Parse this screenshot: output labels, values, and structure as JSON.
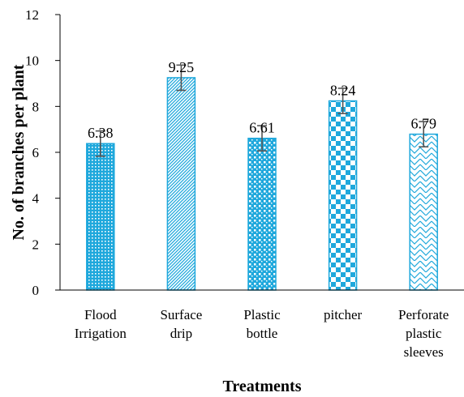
{
  "chart_data": {
    "type": "bar",
    "categories": [
      [
        "Flood",
        "Irrigation"
      ],
      [
        "Surface",
        "drip"
      ],
      [
        "Plastic",
        "bottle"
      ],
      [
        "pitcher"
      ],
      [
        "Perforate",
        "plastic",
        "sleeves"
      ]
    ],
    "values": [
      6.38,
      9.25,
      6.61,
      8.24,
      6.79
    ],
    "value_labels": [
      "6.38",
      "9.25",
      "6.61",
      "8.24",
      "6.79"
    ],
    "error": [
      0.55,
      0.55,
      0.55,
      0.55,
      0.55
    ],
    "xlabel": "Treatments",
    "ylabel": "No. of branches per plant",
    "ylim": [
      0,
      12
    ],
    "yticks": [
      "0",
      "2",
      "4",
      "6",
      "8",
      "10",
      "12"
    ],
    "grid": false,
    "legend": "none",
    "bar_color": "#1fa8dc",
    "patterns": [
      "dots",
      "diagonal",
      "squares",
      "checker",
      "zigzag"
    ]
  }
}
